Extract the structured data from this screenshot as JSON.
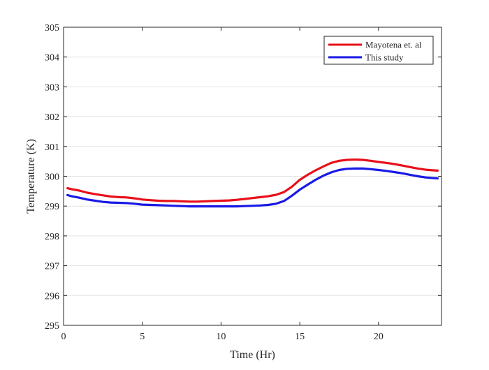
{
  "chart_data": {
    "type": "line",
    "title": "",
    "xlabel": "Time (Hr)",
    "ylabel": "Temperature (K)",
    "xlim": [
      0,
      24
    ],
    "ylim": [
      295,
      305
    ],
    "xticks": [
      0,
      5,
      10,
      15,
      20
    ],
    "xtick_labels": [
      "0",
      "5",
      "10",
      "15",
      "20"
    ],
    "yticks": [
      295,
      296,
      297,
      298,
      299,
      300,
      301,
      302,
      303,
      304,
      305
    ],
    "ytick_labels": [
      "295",
      "296",
      "297",
      "298",
      "299",
      "300",
      "301",
      "302",
      "303",
      "304",
      "305"
    ],
    "grid": "horizontal",
    "legend_position": "top-right",
    "series": [
      {
        "name": "Mayotena et. al",
        "color": "#e8101a",
        "x": [
          0.25,
          0.5,
          1,
          1.5,
          2,
          2.5,
          3,
          3.5,
          4,
          4.5,
          5,
          5.5,
          6,
          6.5,
          7,
          7.5,
          8,
          8.5,
          9,
          9.5,
          10,
          10.5,
          11,
          11.5,
          12,
          12.5,
          13,
          13.5,
          14,
          14.5,
          15,
          15.5,
          16,
          16.5,
          17,
          17.5,
          18,
          18.5,
          19,
          19.5,
          20,
          20.5,
          21,
          21.5,
          22,
          22.5,
          23,
          23.5,
          23.75
        ],
        "y": [
          299.6,
          299.57,
          299.52,
          299.45,
          299.4,
          299.36,
          299.32,
          299.3,
          299.29,
          299.26,
          299.22,
          299.2,
          299.18,
          299.17,
          299.17,
          299.16,
          299.15,
          299.15,
          299.16,
          299.17,
          299.18,
          299.19,
          299.21,
          299.24,
          299.27,
          299.3,
          299.33,
          299.38,
          299.47,
          299.65,
          299.88,
          300.05,
          300.2,
          300.33,
          300.45,
          300.52,
          300.55,
          300.56,
          300.55,
          300.52,
          300.48,
          300.45,
          300.41,
          300.36,
          300.31,
          300.26,
          300.22,
          300.2,
          300.19
        ]
      },
      {
        "name": "This study",
        "color": "#1a1ae6",
        "x": [
          0.25,
          0.5,
          1,
          1.5,
          2,
          2.5,
          3,
          3.5,
          4,
          4.5,
          5,
          5.5,
          6,
          6.5,
          7,
          7.5,
          8,
          8.5,
          9,
          9.5,
          10,
          10.5,
          11,
          11.5,
          12,
          12.5,
          13,
          13.5,
          14,
          14.5,
          15,
          15.5,
          16,
          16.5,
          17,
          17.5,
          18,
          18.5,
          19,
          19.5,
          20,
          20.5,
          21,
          21.5,
          22,
          22.5,
          23,
          23.5,
          23.75
        ],
        "y": [
          299.37,
          299.33,
          299.28,
          299.22,
          299.18,
          299.14,
          299.12,
          299.11,
          299.1,
          299.08,
          299.05,
          299.04,
          299.03,
          299.02,
          299.01,
          299.0,
          298.99,
          298.99,
          298.99,
          298.99,
          298.99,
          298.99,
          298.99,
          299.0,
          299.01,
          299.02,
          299.04,
          299.08,
          299.17,
          299.35,
          299.55,
          299.72,
          299.88,
          300.02,
          300.13,
          300.21,
          300.25,
          300.26,
          300.26,
          300.24,
          300.21,
          300.18,
          300.14,
          300.1,
          300.05,
          300.0,
          299.96,
          299.94,
          299.93
        ]
      }
    ]
  }
}
